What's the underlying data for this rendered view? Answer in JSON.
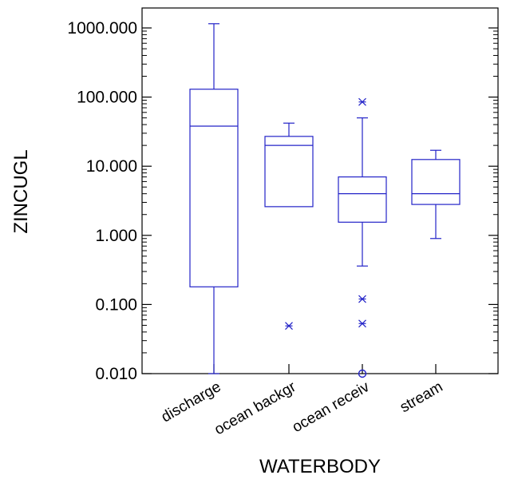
{
  "chart_data": {
    "type": "box",
    "xlabel": "WATERBODY",
    "ylabel": "ZINCUGL",
    "yscale": "log",
    "ylim": [
      0.01,
      1000
    ],
    "yticks": [
      0.01,
      0.1,
      1,
      10,
      100,
      1000
    ],
    "ytick_labels": [
      "0.010",
      "0.100",
      "1.000",
      "10.000",
      "100.000",
      "1000.000"
    ],
    "categories": [
      "discharge",
      "ocean backgr",
      "ocean receiv",
      "stream"
    ],
    "boxes": [
      {
        "category": "discharge",
        "whisker_low": 0.01,
        "q1": 0.18,
        "median": 38,
        "q3": 130,
        "whisker_high": 1150,
        "outliers": [],
        "far_outliers": []
      },
      {
        "category": "ocean backgr",
        "whisker_low": 2.6,
        "q1": 2.6,
        "median": 20,
        "q3": 27,
        "whisker_high": 42,
        "outliers": [
          0.049
        ],
        "far_outliers": []
      },
      {
        "category": "ocean receiv",
        "whisker_low": 0.36,
        "q1": 1.55,
        "median": 4.0,
        "q3": 7.0,
        "whisker_high": 50,
        "outliers": [
          85,
          0.12,
          0.053
        ],
        "far_outliers": [
          0.01
        ]
      },
      {
        "category": "stream",
        "whisker_low": 0.9,
        "q1": 2.8,
        "median": 4.0,
        "q3": 12.5,
        "whisker_high": 17,
        "outliers": [],
        "far_outliers": []
      }
    ],
    "colors": {
      "box": "#2323c8",
      "axes": "#000000"
    },
    "grid": false,
    "legend": "none"
  }
}
